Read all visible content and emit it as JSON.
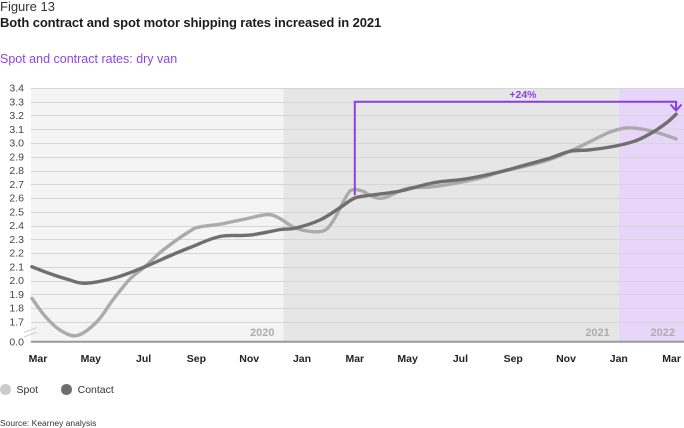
{
  "header": {
    "figure_label": "Figure 13",
    "source": "Source: Kearney analysis"
  },
  "chart_data": {
    "type": "line",
    "title": "Both contract and spot motor shipping rates increased in 2021",
    "subtitle": "Spot and contract rates: dry van",
    "xlabel": "",
    "ylabel": "",
    "x_unit": "months since Mar 2020",
    "xlim": [
      -0.27,
      24.47
    ],
    "ylim": [
      1.555,
      3.4
    ],
    "grid": true,
    "y_ticks": [
      "3.4",
      "3.3",
      "3.2",
      "3.1",
      "3.0",
      "2.9",
      "2.8",
      "2.7",
      "2.6",
      "2.5",
      "2.4",
      "2.3",
      "2.2",
      "2.1",
      "2.0",
      "1.9",
      "1.8",
      "1.7"
    ],
    "y_axis_break": {
      "below": 1.7,
      "baseline_label": "0.0"
    },
    "x_ticks": [
      {
        "label": "Mar",
        "x": 0
      },
      {
        "label": "May",
        "x": 2
      },
      {
        "label": "Jul",
        "x": 4
      },
      {
        "label": "Sep",
        "x": 6
      },
      {
        "label": "Nov",
        "x": 8
      },
      {
        "label": "Jan",
        "x": 10
      },
      {
        "label": "Mar",
        "x": 12
      },
      {
        "label": "May",
        "x": 14
      },
      {
        "label": "Jul",
        "x": 16
      },
      {
        "label": "Sep",
        "x": 18
      },
      {
        "label": "Nov",
        "x": 20
      },
      {
        "label": "Jan",
        "x": 22
      },
      {
        "label": "Mar",
        "x": 24
      }
    ],
    "year_bands": [
      {
        "label": "2020",
        "from": -0.27,
        "to": 9.3,
        "color": "#f4f4f4"
      },
      {
        "label": "2021",
        "from": 9.3,
        "to": 22.0,
        "color": "#e6e6e6"
      },
      {
        "label": "2022",
        "from": 22.0,
        "to": 24.47,
        "color": "#e7d5fa"
      }
    ],
    "series": [
      {
        "name": "Spot",
        "color": "#ababab",
        "points": [
          [
            -0.23,
            1.87
          ],
          [
            0.27,
            1.74
          ],
          [
            0.83,
            1.64
          ],
          [
            1.48,
            1.6
          ],
          [
            2.23,
            1.7
          ],
          [
            2.84,
            1.86
          ],
          [
            3.48,
            2.01
          ],
          [
            4.05,
            2.1
          ],
          [
            4.73,
            2.22
          ],
          [
            5.76,
            2.36
          ],
          [
            6.14,
            2.39
          ],
          [
            6.89,
            2.41
          ],
          [
            7.92,
            2.45
          ],
          [
            8.71,
            2.48
          ],
          [
            9.17,
            2.45
          ],
          [
            9.66,
            2.39
          ],
          [
            10.19,
            2.36
          ],
          [
            10.8,
            2.36
          ],
          [
            11.17,
            2.43
          ],
          [
            11.7,
            2.62
          ],
          [
            11.93,
            2.66
          ],
          [
            12.3,
            2.65
          ],
          [
            12.58,
            2.62
          ],
          [
            13.07,
            2.6
          ],
          [
            13.98,
            2.67
          ],
          [
            14.85,
            2.68
          ],
          [
            15.61,
            2.7
          ],
          [
            16.86,
            2.75
          ],
          [
            17.5,
            2.79
          ],
          [
            18.64,
            2.84
          ],
          [
            19.39,
            2.88
          ],
          [
            20.15,
            2.94
          ],
          [
            20.91,
            3.01
          ],
          [
            21.67,
            3.08
          ],
          [
            22.31,
            3.11
          ],
          [
            22.92,
            3.1
          ],
          [
            23.56,
            3.07
          ],
          [
            24.17,
            3.03
          ]
        ]
      },
      {
        "name": "Contact",
        "color": "#6f6f6f",
        "points": [
          [
            -0.23,
            2.1
          ],
          [
            0.45,
            2.05
          ],
          [
            1.1,
            2.01
          ],
          [
            1.78,
            1.98
          ],
          [
            2.92,
            2.02
          ],
          [
            4.05,
            2.1
          ],
          [
            5.0,
            2.18
          ],
          [
            5.76,
            2.24
          ],
          [
            6.89,
            2.32
          ],
          [
            8.03,
            2.33
          ],
          [
            9.17,
            2.37
          ],
          [
            9.73,
            2.38
          ],
          [
            10.68,
            2.44
          ],
          [
            11.44,
            2.53
          ],
          [
            12.0,
            2.6
          ],
          [
            12.58,
            2.62
          ],
          [
            13.71,
            2.65
          ],
          [
            14.96,
            2.71
          ],
          [
            16.25,
            2.74
          ],
          [
            17.5,
            2.79
          ],
          [
            18.64,
            2.85
          ],
          [
            19.39,
            2.89
          ],
          [
            20.15,
            2.94
          ],
          [
            20.91,
            2.95
          ],
          [
            21.93,
            2.98
          ],
          [
            22.69,
            3.02
          ],
          [
            23.3,
            3.08
          ],
          [
            23.83,
            3.15
          ],
          [
            24.17,
            3.21
          ]
        ]
      }
    ],
    "annotation": {
      "label": "+24%",
      "color": "#8b3ee6",
      "start": {
        "x": 12,
        "y": 2.62
      },
      "level": 3.3,
      "end": {
        "x": 24.17,
        "y": 3.24
      },
      "label_x": 18.37
    },
    "legend": [
      {
        "label": "Spot",
        "marker_color": "#cbcbcb"
      },
      {
        "label": "Contact",
        "marker_color": "#6f6f6f"
      }
    ],
    "legend_position": "bottom-left"
  }
}
